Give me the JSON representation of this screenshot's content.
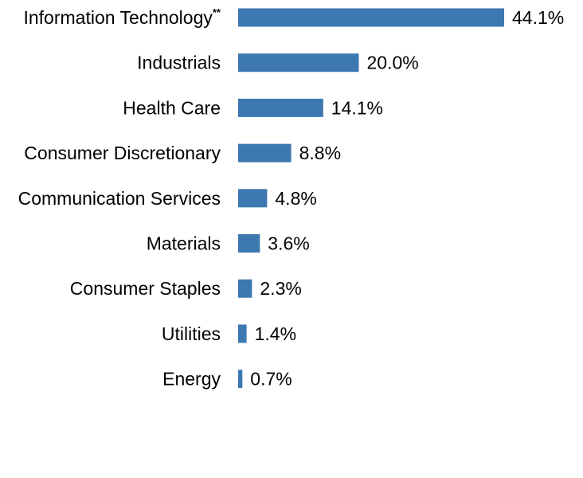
{
  "chart_data": {
    "type": "bar",
    "orientation": "horizontal",
    "categories": [
      "Information Technology",
      "Industrials",
      "Health Care",
      "Consumer Discretionary",
      "Communication Services",
      "Materials",
      "Consumer Staples",
      "Utilities",
      "Energy"
    ],
    "category_superscripts": [
      "**",
      "",
      "",
      "",
      "",
      "",
      "",
      "",
      ""
    ],
    "values": [
      44.1,
      20.0,
      14.1,
      8.8,
      4.8,
      3.6,
      2.3,
      1.4,
      0.7
    ],
    "value_labels": [
      "44.1%",
      "20.0%",
      "14.1%",
      "8.8%",
      "4.8%",
      "3.6%",
      "2.3%",
      "1.4%",
      "0.7%"
    ],
    "xlim": [
      0,
      44.1
    ],
    "grid": false,
    "bar_color": "#3d78b0",
    "title": "",
    "xlabel": "",
    "ylabel": ""
  }
}
